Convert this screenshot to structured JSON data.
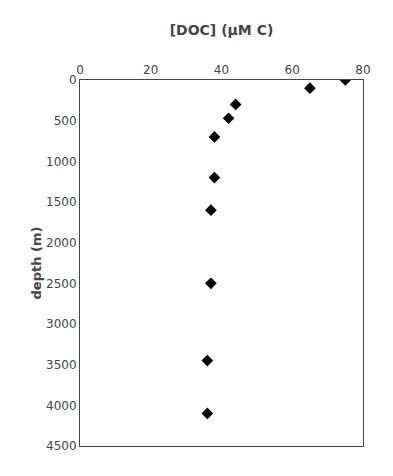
{
  "chart_data": {
    "type": "scatter",
    "xlabel": "[DOC] (μM C)",
    "ylabel": "depth (m)",
    "x": [
      75,
      65,
      44,
      42,
      38,
      38,
      37,
      37,
      36,
      36
    ],
    "values": [
      0,
      100,
      300,
      470,
      700,
      1200,
      1600,
      2500,
      3450,
      4100
    ],
    "xlim": [
      0,
      80
    ],
    "ylim": [
      4500,
      0
    ],
    "xticks": [
      0,
      20,
      40,
      60,
      80
    ],
    "yticks": [
      0,
      500,
      1000,
      1500,
      2000,
      2500,
      3000,
      3500,
      4000,
      4500
    ],
    "marker": "diamond",
    "color": "black",
    "grid": false
  }
}
